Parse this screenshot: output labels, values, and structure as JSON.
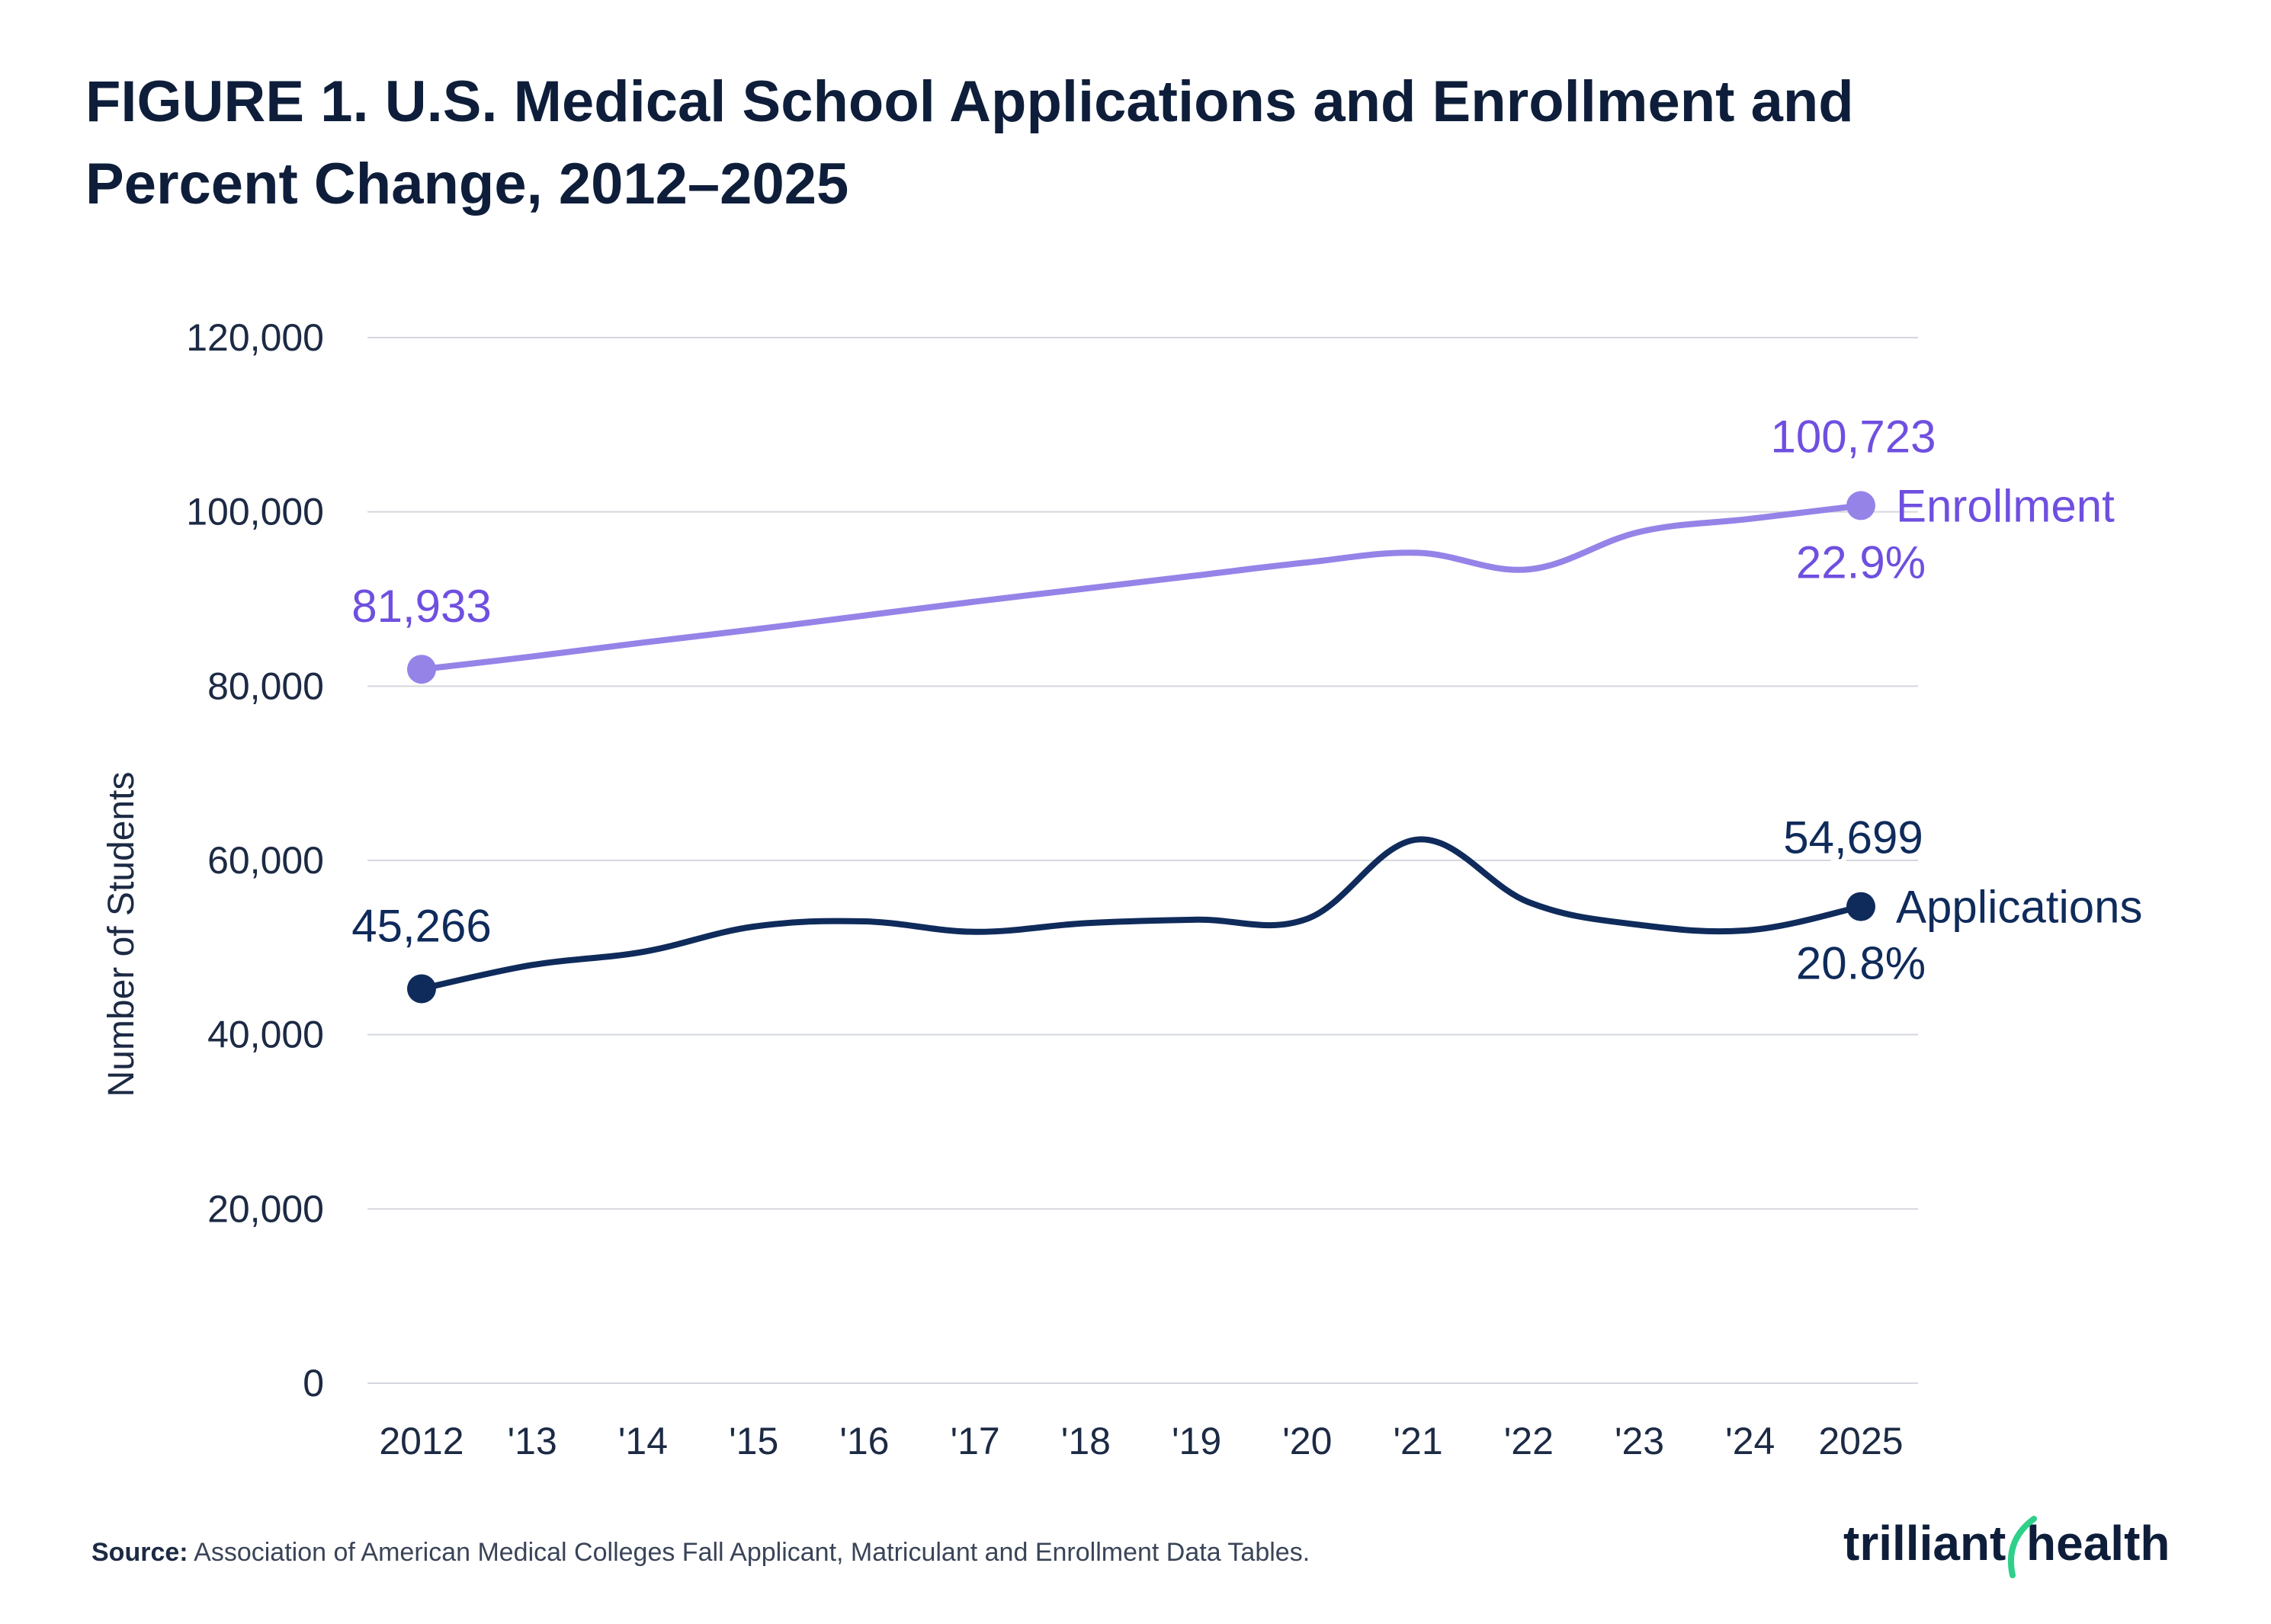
{
  "chart_data": {
    "type": "line",
    "title": "FIGURE 1. U.S. Medical School Applications and Enrollment and Percent Change, 2012–2025",
    "ylabel": "Number of Students",
    "xlabel": "",
    "ylim": [
      0,
      120000
    ],
    "yticks": [
      "0",
      "20,000",
      "40,000",
      "60,000",
      "80,000",
      "100,000",
      "120,000"
    ],
    "ytick_values": [
      0,
      20000,
      40000,
      60000,
      80000,
      100000,
      120000
    ],
    "categories": [
      "2012",
      "'13",
      "'14",
      "'15",
      "'16",
      "'17",
      "'18",
      "'19",
      "'20",
      "'21",
      "'22",
      "'23",
      "'24",
      "2025"
    ],
    "grid": true,
    "legend": "inline labels at line ends",
    "series": [
      {
        "name": "Enrollment",
        "color": "#9683e8",
        "label_color": "#6f4fe0",
        "values": [
          81933,
          83400,
          85000,
          86500,
          88100,
          89700,
          91200,
          92700,
          94200,
          95300,
          93400,
          97700,
          99200,
          100723
        ],
        "start_label": "81,933",
        "end_label": "100,723",
        "pct_label": "22.9%"
      },
      {
        "name": "Applications",
        "color": "#0f2b5b",
        "label_color": "#0f2b5b",
        "values": [
          45266,
          48000,
          49500,
          52400,
          53000,
          51800,
          52800,
          53200,
          53300,
          62400,
          55200,
          52600,
          52000,
          54699
        ],
        "start_label": "45,266",
        "end_label": "54,699",
        "pct_label": "20.8%"
      }
    ]
  },
  "source": {
    "label": "Source:",
    "text": " Association of American Medical Colleges Fall Applicant, Matriculant and Enrollment Data Tables."
  },
  "logo": {
    "text_left": "trilliant",
    "text_right": "health",
    "accent_color": "#2fd08a"
  }
}
